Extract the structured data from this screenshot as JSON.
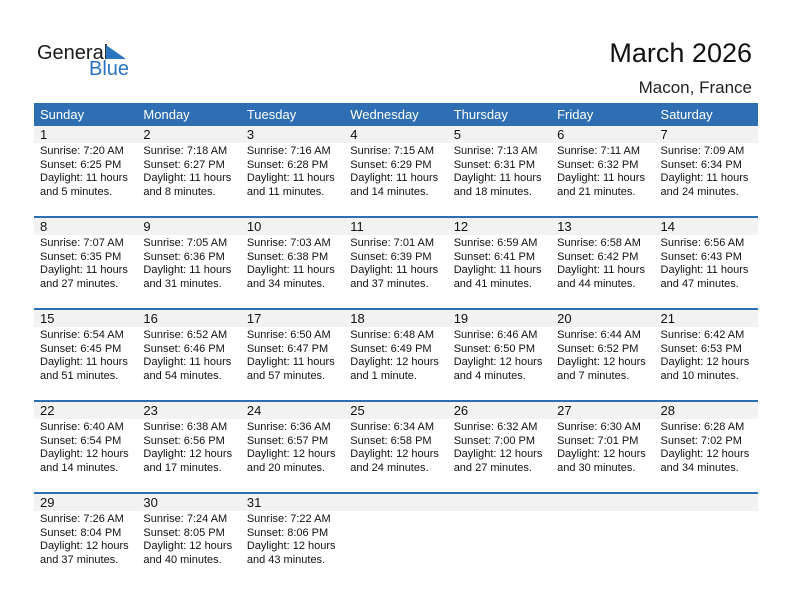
{
  "logo": {
    "text_general": "General",
    "text_blue": "Blue"
  },
  "header": {
    "title": "March 2026",
    "location": "Macon, France"
  },
  "colors": {
    "accent": "#2e6fb4",
    "band": "#f2f2f2"
  },
  "weekdays": [
    "Sunday",
    "Monday",
    "Tuesday",
    "Wednesday",
    "Thursday",
    "Friday",
    "Saturday"
  ],
  "weeks": [
    [
      {
        "day": "1",
        "sunrise": "Sunrise: 7:20 AM",
        "sunset": "Sunset: 6:25 PM",
        "daylight1": "Daylight: 11 hours",
        "daylight2": "and 5 minutes."
      },
      {
        "day": "2",
        "sunrise": "Sunrise: 7:18 AM",
        "sunset": "Sunset: 6:27 PM",
        "daylight1": "Daylight: 11 hours",
        "daylight2": "and 8 minutes."
      },
      {
        "day": "3",
        "sunrise": "Sunrise: 7:16 AM",
        "sunset": "Sunset: 6:28 PM",
        "daylight1": "Daylight: 11 hours",
        "daylight2": "and 11 minutes."
      },
      {
        "day": "4",
        "sunrise": "Sunrise: 7:15 AM",
        "sunset": "Sunset: 6:29 PM",
        "daylight1": "Daylight: 11 hours",
        "daylight2": "and 14 minutes."
      },
      {
        "day": "5",
        "sunrise": "Sunrise: 7:13 AM",
        "sunset": "Sunset: 6:31 PM",
        "daylight1": "Daylight: 11 hours",
        "daylight2": "and 18 minutes."
      },
      {
        "day": "6",
        "sunrise": "Sunrise: 7:11 AM",
        "sunset": "Sunset: 6:32 PM",
        "daylight1": "Daylight: 11 hours",
        "daylight2": "and 21 minutes."
      },
      {
        "day": "7",
        "sunrise": "Sunrise: 7:09 AM",
        "sunset": "Sunset: 6:34 PM",
        "daylight1": "Daylight: 11 hours",
        "daylight2": "and 24 minutes."
      }
    ],
    [
      {
        "day": "8",
        "sunrise": "Sunrise: 7:07 AM",
        "sunset": "Sunset: 6:35 PM",
        "daylight1": "Daylight: 11 hours",
        "daylight2": "and 27 minutes."
      },
      {
        "day": "9",
        "sunrise": "Sunrise: 7:05 AM",
        "sunset": "Sunset: 6:36 PM",
        "daylight1": "Daylight: 11 hours",
        "daylight2": "and 31 minutes."
      },
      {
        "day": "10",
        "sunrise": "Sunrise: 7:03 AM",
        "sunset": "Sunset: 6:38 PM",
        "daylight1": "Daylight: 11 hours",
        "daylight2": "and 34 minutes."
      },
      {
        "day": "11",
        "sunrise": "Sunrise: 7:01 AM",
        "sunset": "Sunset: 6:39 PM",
        "daylight1": "Daylight: 11 hours",
        "daylight2": "and 37 minutes."
      },
      {
        "day": "12",
        "sunrise": "Sunrise: 6:59 AM",
        "sunset": "Sunset: 6:41 PM",
        "daylight1": "Daylight: 11 hours",
        "daylight2": "and 41 minutes."
      },
      {
        "day": "13",
        "sunrise": "Sunrise: 6:58 AM",
        "sunset": "Sunset: 6:42 PM",
        "daylight1": "Daylight: 11 hours",
        "daylight2": "and 44 minutes."
      },
      {
        "day": "14",
        "sunrise": "Sunrise: 6:56 AM",
        "sunset": "Sunset: 6:43 PM",
        "daylight1": "Daylight: 11 hours",
        "daylight2": "and 47 minutes."
      }
    ],
    [
      {
        "day": "15",
        "sunrise": "Sunrise: 6:54 AM",
        "sunset": "Sunset: 6:45 PM",
        "daylight1": "Daylight: 11 hours",
        "daylight2": "and 51 minutes."
      },
      {
        "day": "16",
        "sunrise": "Sunrise: 6:52 AM",
        "sunset": "Sunset: 6:46 PM",
        "daylight1": "Daylight: 11 hours",
        "daylight2": "and 54 minutes."
      },
      {
        "day": "17",
        "sunrise": "Sunrise: 6:50 AM",
        "sunset": "Sunset: 6:47 PM",
        "daylight1": "Daylight: 11 hours",
        "daylight2": "and 57 minutes."
      },
      {
        "day": "18",
        "sunrise": "Sunrise: 6:48 AM",
        "sunset": "Sunset: 6:49 PM",
        "daylight1": "Daylight: 12 hours",
        "daylight2": "and 1 minute."
      },
      {
        "day": "19",
        "sunrise": "Sunrise: 6:46 AM",
        "sunset": "Sunset: 6:50 PM",
        "daylight1": "Daylight: 12 hours",
        "daylight2": "and 4 minutes."
      },
      {
        "day": "20",
        "sunrise": "Sunrise: 6:44 AM",
        "sunset": "Sunset: 6:52 PM",
        "daylight1": "Daylight: 12 hours",
        "daylight2": "and 7 minutes."
      },
      {
        "day": "21",
        "sunrise": "Sunrise: 6:42 AM",
        "sunset": "Sunset: 6:53 PM",
        "daylight1": "Daylight: 12 hours",
        "daylight2": "and 10 minutes."
      }
    ],
    [
      {
        "day": "22",
        "sunrise": "Sunrise: 6:40 AM",
        "sunset": "Sunset: 6:54 PM",
        "daylight1": "Daylight: 12 hours",
        "daylight2": "and 14 minutes."
      },
      {
        "day": "23",
        "sunrise": "Sunrise: 6:38 AM",
        "sunset": "Sunset: 6:56 PM",
        "daylight1": "Daylight: 12 hours",
        "daylight2": "and 17 minutes."
      },
      {
        "day": "24",
        "sunrise": "Sunrise: 6:36 AM",
        "sunset": "Sunset: 6:57 PM",
        "daylight1": "Daylight: 12 hours",
        "daylight2": "and 20 minutes."
      },
      {
        "day": "25",
        "sunrise": "Sunrise: 6:34 AM",
        "sunset": "Sunset: 6:58 PM",
        "daylight1": "Daylight: 12 hours",
        "daylight2": "and 24 minutes."
      },
      {
        "day": "26",
        "sunrise": "Sunrise: 6:32 AM",
        "sunset": "Sunset: 7:00 PM",
        "daylight1": "Daylight: 12 hours",
        "daylight2": "and 27 minutes."
      },
      {
        "day": "27",
        "sunrise": "Sunrise: 6:30 AM",
        "sunset": "Sunset: 7:01 PM",
        "daylight1": "Daylight: 12 hours",
        "daylight2": "and 30 minutes."
      },
      {
        "day": "28",
        "sunrise": "Sunrise: 6:28 AM",
        "sunset": "Sunset: 7:02 PM",
        "daylight1": "Daylight: 12 hours",
        "daylight2": "and 34 minutes."
      }
    ],
    [
      {
        "day": "29",
        "sunrise": "Sunrise: 7:26 AM",
        "sunset": "Sunset: 8:04 PM",
        "daylight1": "Daylight: 12 hours",
        "daylight2": "and 37 minutes."
      },
      {
        "day": "30",
        "sunrise": "Sunrise: 7:24 AM",
        "sunset": "Sunset: 8:05 PM",
        "daylight1": "Daylight: 12 hours",
        "daylight2": "and 40 minutes."
      },
      {
        "day": "31",
        "sunrise": "Sunrise: 7:22 AM",
        "sunset": "Sunset: 8:06 PM",
        "daylight1": "Daylight: 12 hours",
        "daylight2": "and 43 minutes."
      },
      null,
      null,
      null,
      null
    ]
  ]
}
